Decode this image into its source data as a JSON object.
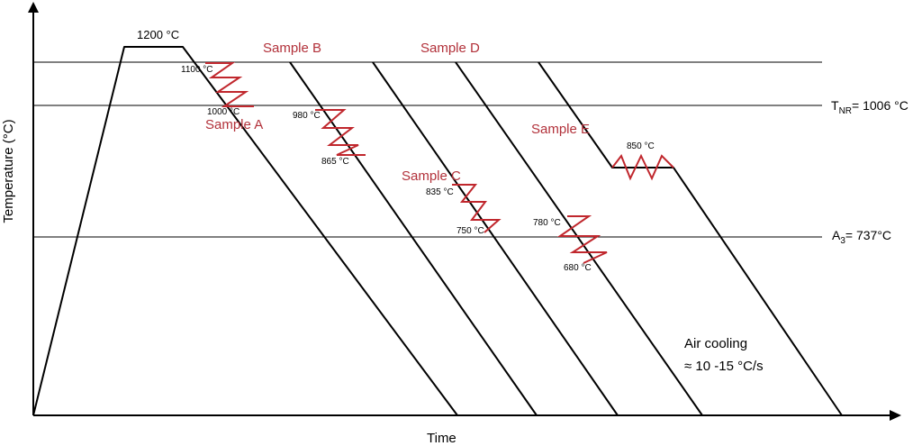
{
  "chart_data": {
    "type": "line",
    "title": "",
    "xlabel": "Time",
    "ylabel": "Temperature (°C)",
    "reference_lines": {
      "top_unlabeled": "",
      "tnr": {
        "base": "T",
        "sub": "NR",
        "rest": "= 1006 °C",
        "value": 1006
      },
      "a3": {
        "base": "A",
        "sub": "3",
        "rest": "= 737°C",
        "value": 737
      }
    },
    "reheat": {
      "label": "1200 °C",
      "value": 1200
    },
    "samples": [
      {
        "name": "Sample A",
        "deform_start": "1100 °C",
        "deform_end": "1000 °C"
      },
      {
        "name": "Sample B",
        "deform_start": "980 °C",
        "deform_end": "865 °C"
      },
      {
        "name": "Sample C",
        "deform_start": "835 °C",
        "deform_end": "750 °C"
      },
      {
        "name": "Sample D",
        "deform_start": "780 °C",
        "deform_end": "680 °C"
      },
      {
        "name": "Sample E",
        "deform_hold": "850 °C"
      }
    ],
    "cooling_note": {
      "line1": "Air cooling",
      "line2": "≈ 10 -15 °C/s"
    },
    "grid": false,
    "legend": "none"
  },
  "colors": {
    "line": "#000000",
    "deformation": "#c0272d",
    "sample_label": "#b2313a",
    "reference": "#000000"
  }
}
